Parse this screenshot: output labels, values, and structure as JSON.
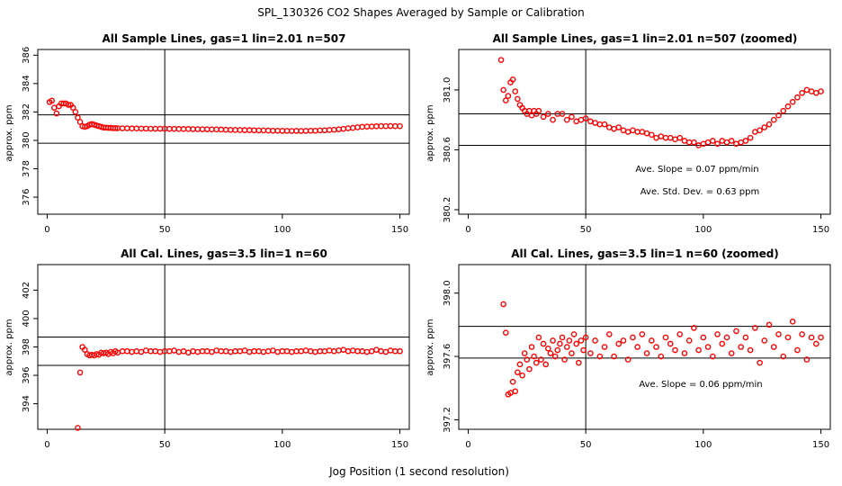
{
  "figure": {
    "title": "SPL_130326  CO2 Shapes Averaged by Sample or Calibration",
    "xlabel": "Jog Position (1 second resolution)",
    "colors": {
      "points": "#ff0000",
      "axes": "#000000",
      "background": "#ffffff"
    }
  },
  "chart_data": [
    {
      "type": "scatter",
      "title": "All Sample Lines, gas=1 lin=2.01 n=507",
      "xlabel": "",
      "ylabel": "approx. ppm",
      "xlim": [
        -4,
        154
      ],
      "ylim": [
        374.8,
        386.4
      ],
      "xticks": [
        0,
        50,
        100,
        150
      ],
      "xtick_labels": [
        "0",
        "50",
        "100",
        "150"
      ],
      "yticks": [
        376,
        378,
        380,
        382,
        384,
        386
      ],
      "ytick_labels": [
        "376",
        "378",
        "380",
        "382",
        "384",
        "386"
      ],
      "grid": false,
      "vline": 50,
      "hlines": [
        381.8,
        379.8
      ],
      "annotations": [],
      "series": [
        {
          "marker": "open circle",
          "x": [
            1,
            2,
            3,
            4,
            5,
            6,
            7,
            8,
            9,
            10,
            11,
            12,
            13,
            14,
            15,
            16,
            17,
            18,
            19,
            20,
            21,
            22,
            23,
            24,
            25,
            26,
            27,
            28,
            29,
            30,
            32,
            34,
            36,
            38,
            40,
            42,
            44,
            46,
            48,
            50,
            52,
            54,
            56,
            58,
            60,
            62,
            64,
            66,
            68,
            70,
            72,
            74,
            76,
            78,
            80,
            82,
            84,
            86,
            88,
            90,
            92,
            94,
            96,
            98,
            100,
            102,
            104,
            106,
            108,
            110,
            112,
            114,
            116,
            118,
            120,
            122,
            124,
            126,
            128,
            130,
            132,
            134,
            136,
            138,
            140,
            142,
            144,
            146,
            148,
            150
          ],
          "y": [
            382.7,
            382.8,
            382.3,
            381.9,
            382.4,
            382.6,
            382.6,
            382.6,
            382.5,
            382.5,
            382.3,
            382.0,
            381.6,
            381.3,
            381.0,
            380.95,
            381.0,
            381.1,
            381.15,
            381.1,
            381.05,
            381.0,
            380.95,
            380.9,
            380.9,
            380.88,
            380.88,
            380.86,
            380.86,
            380.86,
            380.85,
            380.85,
            380.84,
            380.84,
            380.83,
            380.83,
            380.82,
            380.82,
            380.82,
            380.82,
            380.81,
            380.81,
            380.8,
            380.8,
            380.8,
            380.79,
            380.79,
            380.78,
            380.78,
            380.77,
            380.77,
            380.76,
            380.75,
            380.74,
            380.73,
            380.73,
            380.72,
            380.72,
            380.71,
            380.7,
            380.7,
            380.69,
            380.68,
            380.68,
            380.67,
            380.67,
            380.66,
            380.67,
            380.66,
            380.67,
            380.68,
            380.68,
            380.7,
            380.71,
            380.73,
            380.75,
            380.78,
            380.81,
            380.85,
            380.88,
            380.92,
            380.95,
            380.97,
            380.98,
            380.99,
            381.0,
            381.0,
            381.01,
            381.0,
            381.0
          ]
        }
      ]
    },
    {
      "type": "scatter",
      "title": "All Sample Lines, gas=1 lin=2.01 n=507 (zoomed)",
      "xlabel": "",
      "ylabel": "approx. ppm",
      "xlim": [
        -4,
        154
      ],
      "ylim": [
        380.17,
        381.27
      ],
      "xticks": [
        0,
        50,
        100,
        150
      ],
      "xtick_labels": [
        "0",
        "50",
        "100",
        "150"
      ],
      "yticks": [
        380.2,
        380.6,
        381.0
      ],
      "ytick_labels": [
        "380.2",
        "380.6",
        "381.0"
      ],
      "grid": false,
      "vline": 50,
      "hlines": [
        380.84,
        380.63
      ],
      "annotations": [
        "Ave. Slope =  0.07  ppm/min",
        "Ave. Std. Dev. =  0.63  ppm"
      ],
      "series": [
        {
          "marker": "open circle",
          "x": [
            14,
            15,
            16,
            17,
            18,
            19,
            20,
            21,
            22,
            23,
            24,
            25,
            26,
            27,
            28,
            29,
            30,
            32,
            34,
            36,
            38,
            40,
            42,
            44,
            46,
            48,
            50,
            52,
            54,
            56,
            58,
            60,
            62,
            64,
            66,
            68,
            70,
            72,
            74,
            76,
            78,
            80,
            82,
            84,
            86,
            88,
            90,
            92,
            94,
            96,
            98,
            100,
            102,
            104,
            106,
            108,
            110,
            112,
            114,
            116,
            118,
            120,
            122,
            124,
            126,
            128,
            130,
            132,
            134,
            136,
            138,
            140,
            142,
            144,
            146,
            148,
            150
          ],
          "y": [
            381.2,
            381.0,
            380.93,
            380.96,
            381.05,
            381.07,
            380.99,
            380.94,
            380.9,
            380.88,
            380.86,
            380.84,
            380.86,
            380.83,
            380.86,
            380.84,
            380.86,
            380.82,
            380.84,
            380.8,
            380.84,
            380.84,
            380.8,
            380.82,
            380.79,
            380.8,
            380.81,
            380.79,
            380.78,
            380.77,
            380.77,
            380.75,
            380.74,
            380.75,
            380.73,
            380.72,
            380.73,
            380.72,
            380.72,
            380.71,
            380.7,
            380.68,
            380.69,
            380.68,
            380.68,
            380.67,
            380.68,
            380.66,
            380.65,
            380.65,
            380.63,
            380.64,
            380.65,
            380.66,
            380.64,
            380.66,
            380.65,
            380.66,
            380.64,
            380.65,
            380.66,
            380.68,
            380.72,
            380.73,
            380.75,
            380.77,
            380.8,
            380.83,
            380.86,
            380.89,
            380.92,
            380.95,
            380.98,
            381.0,
            380.99,
            380.98,
            380.99
          ]
        }
      ]
    },
    {
      "type": "scatter",
      "title": "All Cal. Lines, gas=3.5 lin=1 n=60",
      "xlabel": "",
      "ylabel": "approx. ppm",
      "xlim": [
        -4,
        154
      ],
      "ylim": [
        392.2,
        403.8
      ],
      "xticks": [
        0,
        50,
        100,
        150
      ],
      "xtick_labels": [
        "0",
        "50",
        "100",
        "150"
      ],
      "yticks": [
        394,
        396,
        398,
        400,
        402
      ],
      "ytick_labels": [
        "394",
        "396",
        "398",
        "400",
        "402"
      ],
      "grid": false,
      "vline": 50,
      "hlines": [
        398.7,
        396.7
      ],
      "annotations": [],
      "series": [
        {
          "marker": "open circle",
          "x": [
            13,
            14,
            15,
            16,
            17,
            18,
            19,
            20,
            21,
            22,
            23,
            24,
            25,
            26,
            27,
            28,
            29,
            30,
            32,
            34,
            36,
            38,
            40,
            42,
            44,
            46,
            48,
            50,
            52,
            54,
            56,
            58,
            60,
            62,
            64,
            66,
            68,
            70,
            72,
            74,
            76,
            78,
            80,
            82,
            84,
            86,
            88,
            90,
            92,
            94,
            96,
            98,
            100,
            102,
            104,
            106,
            108,
            110,
            112,
            114,
            116,
            118,
            120,
            122,
            124,
            126,
            128,
            130,
            132,
            134,
            136,
            138,
            140,
            142,
            144,
            146,
            148,
            150
          ],
          "y": [
            392.3,
            396.2,
            398.0,
            397.8,
            397.5,
            397.4,
            397.45,
            397.4,
            397.5,
            397.45,
            397.6,
            397.55,
            397.6,
            397.5,
            397.65,
            397.55,
            397.7,
            397.6,
            397.7,
            397.7,
            397.65,
            397.7,
            397.65,
            397.75,
            397.7,
            397.7,
            397.65,
            397.7,
            397.7,
            397.75,
            397.65,
            397.7,
            397.6,
            397.7,
            397.65,
            397.7,
            397.7,
            397.65,
            397.75,
            397.7,
            397.7,
            397.65,
            397.7,
            397.7,
            397.75,
            397.65,
            397.7,
            397.7,
            397.65,
            397.7,
            397.75,
            397.65,
            397.7,
            397.7,
            397.65,
            397.7,
            397.7,
            397.75,
            397.7,
            397.65,
            397.7,
            397.7,
            397.75,
            397.7,
            397.75,
            397.8,
            397.7,
            397.75,
            397.7,
            397.7,
            397.65,
            397.7,
            397.8,
            397.7,
            397.65,
            397.75,
            397.7,
            397.7
          ]
        }
      ]
    },
    {
      "type": "scatter",
      "title": "All Cal. Lines, gas=3.5 lin=1 n=60 (zoomed)",
      "xlabel": "",
      "ylabel": "approx. ppm",
      "xlim": [
        -4,
        154
      ],
      "ylim": [
        397.14,
        398.18
      ],
      "xticks": [
        0,
        50,
        100,
        150
      ],
      "xtick_labels": [
        "0",
        "50",
        "100",
        "150"
      ],
      "yticks": [
        397.2,
        397.6,
        398.0
      ],
      "ytick_labels": [
        "397.2",
        "397.6",
        "398.0"
      ],
      "grid": false,
      "vline": 50,
      "hlines": [
        397.79,
        397.59
      ],
      "annotations": [
        "Ave. Slope =  0.06  ppm/min"
      ],
      "series": [
        {
          "marker": "open circle",
          "x": [
            15,
            16,
            17,
            18,
            19,
            20,
            21,
            22,
            23,
            24,
            25,
            26,
            27,
            28,
            29,
            30,
            31,
            32,
            33,
            34,
            35,
            36,
            37,
            38,
            39,
            40,
            41,
            42,
            43,
            44,
            45,
            46,
            47,
            48,
            49,
            50,
            52,
            54,
            56,
            58,
            60,
            62,
            64,
            66,
            68,
            70,
            72,
            74,
            76,
            78,
            80,
            82,
            84,
            86,
            88,
            90,
            92,
            94,
            96,
            98,
            100,
            102,
            104,
            106,
            108,
            110,
            112,
            114,
            116,
            118,
            120,
            122,
            124,
            126,
            128,
            130,
            132,
            134,
            136,
            138,
            140,
            142,
            144,
            146,
            148,
            150
          ],
          "y": [
            397.93,
            397.75,
            397.36,
            397.37,
            397.44,
            397.38,
            397.5,
            397.55,
            397.48,
            397.62,
            397.58,
            397.52,
            397.66,
            397.6,
            397.56,
            397.72,
            397.58,
            397.68,
            397.55,
            397.65,
            397.62,
            397.7,
            397.6,
            397.64,
            397.68,
            397.72,
            397.58,
            397.66,
            397.7,
            397.62,
            397.74,
            397.68,
            397.56,
            397.7,
            397.64,
            397.72,
            397.62,
            397.7,
            397.6,
            397.66,
            397.74,
            397.6,
            397.68,
            397.7,
            397.58,
            397.72,
            397.66,
            397.74,
            397.62,
            397.7,
            397.66,
            397.6,
            397.72,
            397.68,
            397.64,
            397.74,
            397.62,
            397.7,
            397.78,
            397.64,
            397.72,
            397.66,
            397.6,
            397.74,
            397.68,
            397.72,
            397.62,
            397.76,
            397.66,
            397.72,
            397.64,
            397.78,
            397.56,
            397.7,
            397.8,
            397.66,
            397.74,
            397.6,
            397.72,
            397.82,
            397.64,
            397.74,
            397.58,
            397.72,
            397.68,
            397.72
          ]
        }
      ]
    }
  ]
}
